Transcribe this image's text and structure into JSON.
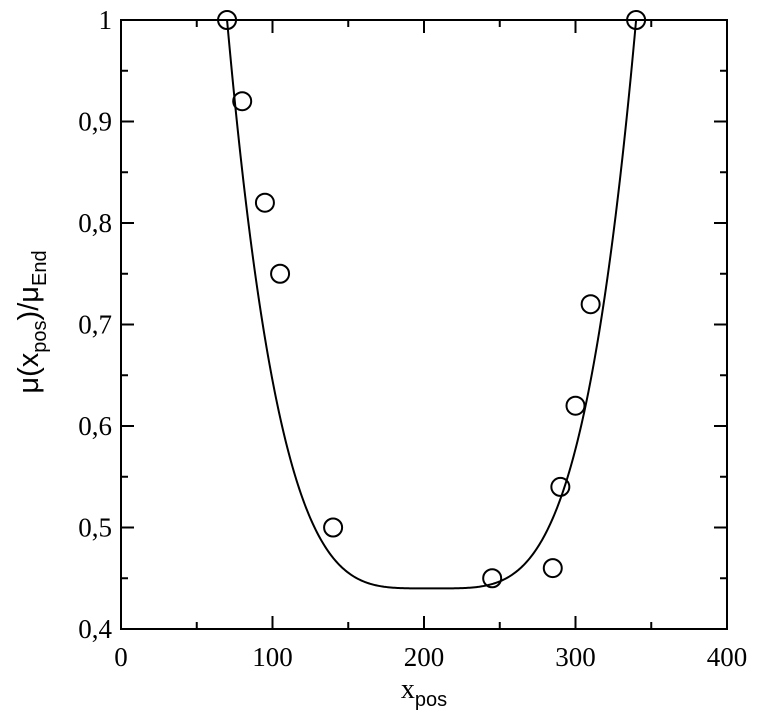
{
  "chart_data": {
    "type": "scatter",
    "title": "",
    "xlabel": {
      "main": "x",
      "sub": "pos"
    },
    "ylabel": {
      "part1": "μ(x",
      "sub1": "pos",
      "part2": ")/μ",
      "sub2": "End"
    },
    "xlim": [
      0,
      400
    ],
    "ylim": [
      0.4,
      1.0
    ],
    "x_ticks": [
      0,
      100,
      200,
      300,
      400
    ],
    "x_tick_labels": [
      "0",
      "100",
      "200",
      "300",
      "400"
    ],
    "x_minor_ticks": [
      50,
      150,
      250,
      350
    ],
    "y_ticks": [
      0.4,
      0.5,
      0.6,
      0.7,
      0.8,
      0.9,
      1.0
    ],
    "y_tick_labels": [
      "0,4",
      "0,5",
      "0,6",
      "0,7",
      "0,8",
      "0,9",
      "1"
    ],
    "y_minor_ticks": [
      0.45,
      0.55,
      0.65,
      0.75,
      0.85,
      0.95
    ],
    "grid": false,
    "series": [
      {
        "kind": "points",
        "marker": "open-circle",
        "x": [
          70,
          80,
          95,
          105,
          140,
          245,
          285,
          290,
          300,
          310,
          340
        ],
        "y": [
          1.0,
          0.92,
          0.82,
          0.75,
          0.5,
          0.45,
          0.46,
          0.54,
          0.62,
          0.72,
          1.0
        ]
      },
      {
        "kind": "fit-curve",
        "shape": "quartic",
        "x_min": 70,
        "x_vertex": 205,
        "x_max": 340,
        "y_min": 0.44,
        "y_at_ends": 1.0
      }
    ]
  }
}
